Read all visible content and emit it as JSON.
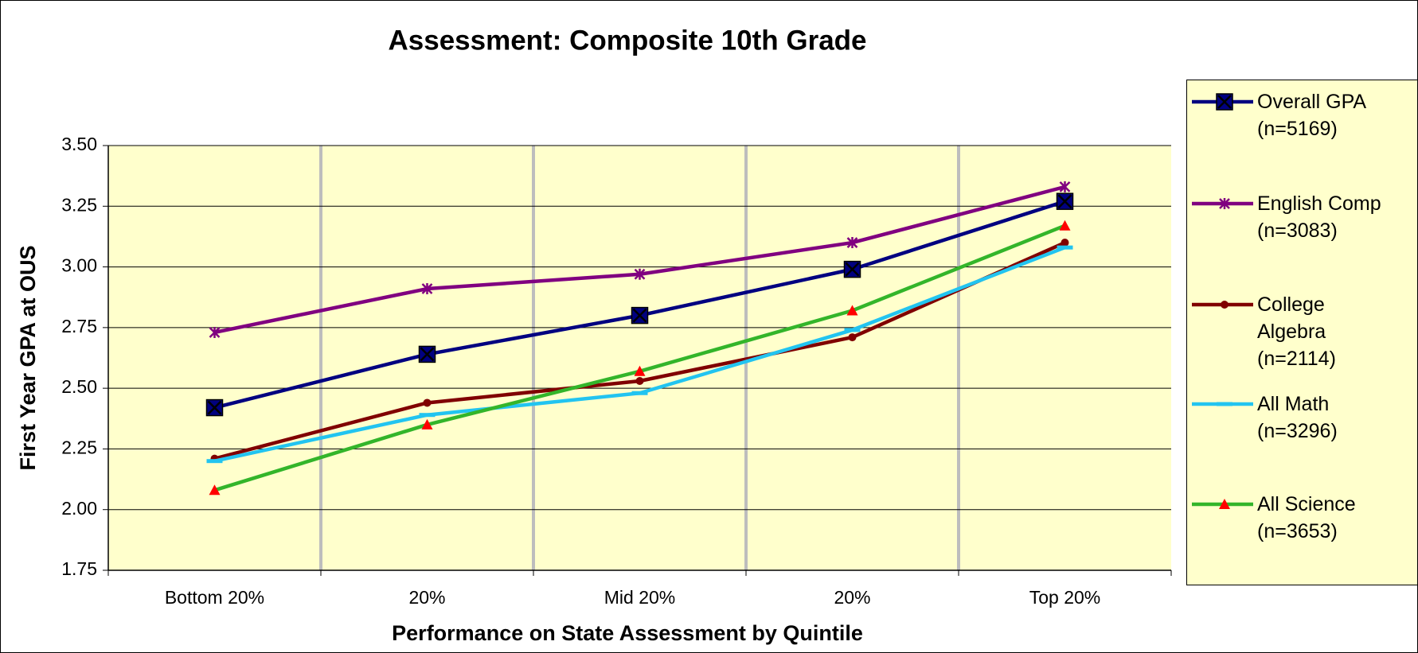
{
  "chart_data": {
    "type": "line",
    "title": "Assessment: Composite 10th Grade",
    "x_label": "Performance on State Assessment by Quintile",
    "y_label": "First Year GPA at OUS",
    "categories": [
      "Bottom 20%",
      "20%",
      "Mid 20%",
      "20%",
      "Top 20%"
    ],
    "ylim": [
      1.75,
      3.5
    ],
    "yticks": [
      1.75,
      {
        "value": 2,
        "label": "2.00"
      },
      2.25,
      {
        "value": 2.5,
        "label": "2.50"
      },
      2.75,
      {
        "value": 3,
        "label": "3.00"
      },
      3.25,
      {
        "value": 3.5,
        "label": "3.50"
      }
    ],
    "grid": true,
    "legend": "right",
    "series": [
      {
        "name": "Overall GPA\n(n=5169)",
        "color": "#000080",
        "marker": "square-x",
        "marker_color": "#000080",
        "values": [
          2.42,
          2.64,
          2.8,
          2.99,
          3.27
        ]
      },
      {
        "name": "English  Comp\n(n=3083)",
        "color": "#800080",
        "marker": "asterisk",
        "marker_color": "#800080",
        "values": [
          2.73,
          2.91,
          2.97,
          3.1,
          3.33
        ]
      },
      {
        "name": "College\nAlgebra\n(n=2114)",
        "color": "#800000",
        "marker": "circle",
        "marker_color": "#800000",
        "values": [
          2.21,
          2.44,
          2.53,
          2.71,
          3.1
        ]
      },
      {
        "name": "All Math\n(n=3296)",
        "color": "#22c4f0",
        "marker": "dash",
        "marker_color": "#22c4f0",
        "values": [
          2.2,
          2.39,
          2.48,
          2.74,
          3.08
        ]
      },
      {
        "name": "All Science\n(n=3653)",
        "color": "#33b52a",
        "marker": "triangle",
        "marker_color": "#ff0000",
        "values": [
          2.08,
          2.35,
          2.57,
          2.82,
          3.17
        ]
      }
    ]
  }
}
